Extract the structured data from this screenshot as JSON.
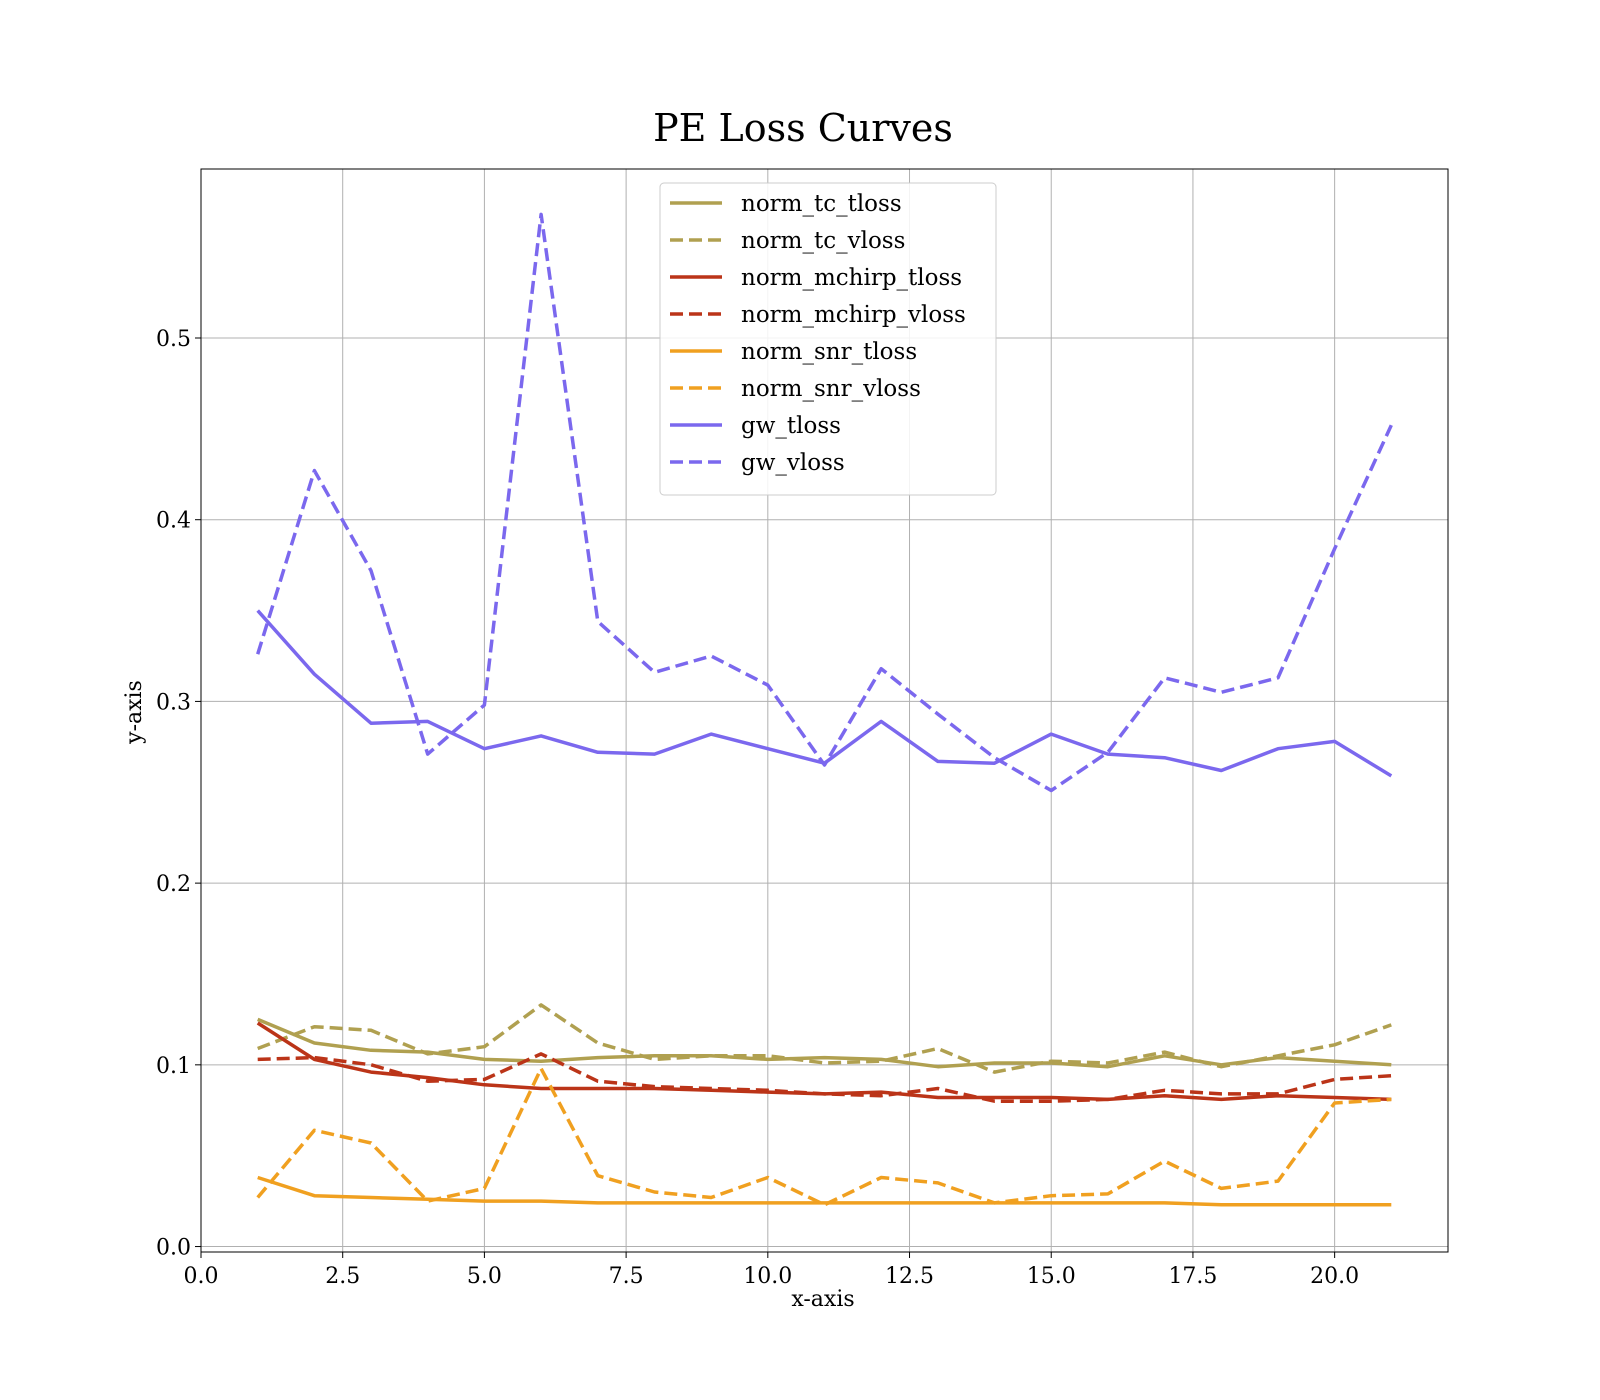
{
  "chart_data": {
    "type": "line",
    "title": "PE Loss Curves",
    "xlabel": "x-axis",
    "ylabel": "y-axis",
    "xlim": [
      0,
      22
    ],
    "ylim": [
      -0.003,
      0.593
    ],
    "x_ticks": [
      0.0,
      2.5,
      5.0,
      7.5,
      10.0,
      12.5,
      15.0,
      17.5,
      20.0
    ],
    "x_tick_labels": [
      "0.0",
      "2.5",
      "5.0",
      "7.5",
      "10.0",
      "12.5",
      "15.0",
      "17.5",
      "20.0"
    ],
    "y_ticks": [
      0.0,
      0.1,
      0.2,
      0.3,
      0.4,
      0.5
    ],
    "y_tick_labels": [
      "0.0",
      "0.1",
      "0.2",
      "0.3",
      "0.4",
      "0.5"
    ],
    "grid": true,
    "legend_position": "top-center",
    "x": [
      1,
      2,
      3,
      4,
      5,
      6,
      7,
      8,
      9,
      10,
      11,
      12,
      13,
      14,
      15,
      16,
      17,
      18,
      19,
      20,
      21
    ],
    "series": [
      {
        "name": "norm_tc_tloss",
        "color": "#b0a050",
        "dash": "solid",
        "values": [
          0.125,
          0.112,
          0.108,
          0.107,
          0.103,
          0.102,
          0.104,
          0.105,
          0.105,
          0.103,
          0.104,
          0.103,
          0.099,
          0.101,
          0.101,
          0.099,
          0.105,
          0.1,
          0.104,
          0.102,
          0.1
        ]
      },
      {
        "name": "norm_tc_vloss",
        "color": "#b0a050",
        "dash": "dashed",
        "values": [
          0.109,
          0.121,
          0.119,
          0.106,
          0.11,
          0.133,
          0.112,
          0.103,
          0.105,
          0.105,
          0.101,
          0.102,
          0.109,
          0.096,
          0.102,
          0.101,
          0.107,
          0.099,
          0.105,
          0.111,
          0.122
        ]
      },
      {
        "name": "norm_mchirp_tloss",
        "color": "#bb3418",
        "dash": "solid",
        "values": [
          0.123,
          0.103,
          0.096,
          0.093,
          0.089,
          0.087,
          0.087,
          0.087,
          0.086,
          0.085,
          0.084,
          0.085,
          0.082,
          0.082,
          0.082,
          0.081,
          0.083,
          0.081,
          0.083,
          0.082,
          0.081
        ]
      },
      {
        "name": "norm_mchirp_vloss",
        "color": "#bb3418",
        "dash": "dashed",
        "values": [
          0.103,
          0.104,
          0.1,
          0.091,
          0.092,
          0.106,
          0.091,
          0.088,
          0.087,
          0.086,
          0.084,
          0.083,
          0.087,
          0.08,
          0.08,
          0.081,
          0.086,
          0.084,
          0.084,
          0.092,
          0.094
        ]
      },
      {
        "name": "norm_snr_tloss",
        "color": "#f0a020",
        "dash": "solid",
        "values": [
          0.038,
          0.028,
          0.027,
          0.026,
          0.025,
          0.025,
          0.024,
          0.024,
          0.024,
          0.024,
          0.024,
          0.024,
          0.024,
          0.024,
          0.024,
          0.024,
          0.024,
          0.023,
          0.023,
          0.023,
          0.023
        ]
      },
      {
        "name": "norm_snr_vloss",
        "color": "#f0a020",
        "dash": "dashed",
        "values": [
          0.027,
          0.064,
          0.057,
          0.025,
          0.032,
          0.098,
          0.039,
          0.03,
          0.027,
          0.038,
          0.023,
          0.038,
          0.035,
          0.024,
          0.028,
          0.029,
          0.047,
          0.032,
          0.036,
          0.079,
          0.081
        ]
      },
      {
        "name": "gw_tloss",
        "color": "#7b68ee",
        "dash": "solid",
        "values": [
          0.35,
          0.315,
          0.288,
          0.289,
          0.274,
          0.281,
          0.272,
          0.271,
          0.282,
          0.274,
          0.266,
          0.289,
          0.267,
          0.266,
          0.282,
          0.271,
          0.269,
          0.262,
          0.274,
          0.278,
          0.259
        ]
      },
      {
        "name": "gw_vloss",
        "color": "#7b68ee",
        "dash": "dashed",
        "values": [
          0.326,
          0.427,
          0.372,
          0.271,
          0.298,
          0.568,
          0.344,
          0.316,
          0.325,
          0.309,
          0.265,
          0.318,
          0.293,
          0.269,
          0.251,
          0.272,
          0.313,
          0.305,
          0.313,
          0.384,
          0.452
        ]
      }
    ]
  }
}
